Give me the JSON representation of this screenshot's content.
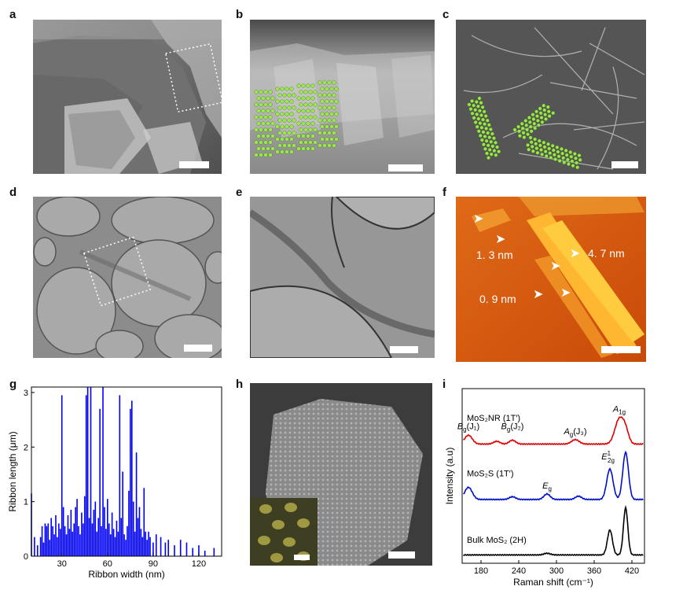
{
  "panel_labels": [
    "a",
    "b",
    "c",
    "d",
    "e",
    "f",
    "g",
    "h",
    "i"
  ],
  "afm": {
    "labels": [
      "1. 3 nm",
      "4. 7 nm",
      "0. 9 nm"
    ]
  },
  "colors": {
    "sem_bg": "#6e6e6e",
    "tem_bg": "#9a9a9a",
    "afm_bg": "#d45a10",
    "afm_ribbon": "#ffc030",
    "atom_green": "#9be84a",
    "histogram": "#0000ff",
    "raman_nr": "#e00000",
    "raman_s": "#0010c8",
    "raman_bulk": "#000000"
  },
  "chart_data": [
    {
      "panel": "g",
      "type": "bar",
      "xlabel": "Ribbon width (nm)",
      "ylabel": "Ribbon length (μm)",
      "xlim": [
        10,
        135
      ],
      "ylim": [
        0,
        3.1
      ],
      "xticks": [
        30,
        60,
        90,
        120
      ],
      "yticks": [
        0,
        1,
        2,
        3
      ],
      "x": [
        10,
        12,
        14,
        16,
        17,
        18,
        19,
        20,
        21,
        22,
        23,
        24,
        25,
        26,
        27,
        28,
        29,
        30,
        31,
        32,
        33,
        34,
        35,
        36,
        37,
        38,
        39,
        40,
        41,
        42,
        43,
        44,
        45,
        46,
        47,
        48,
        49,
        50,
        51,
        52,
        53,
        54,
        55,
        56,
        57,
        58,
        59,
        60,
        61,
        62,
        63,
        64,
        65,
        66,
        67,
        68,
        69,
        70,
        71,
        72,
        73,
        74,
        75,
        76,
        77,
        78,
        79,
        80,
        81,
        82,
        83,
        84,
        85,
        86,
        87,
        88,
        90,
        92,
        95,
        98,
        100,
        104,
        108,
        112,
        116,
        120,
        124,
        130
      ],
      "values": [
        1.15,
        0.35,
        0.2,
        0.35,
        0.55,
        0.25,
        0.6,
        0.55,
        0.6,
        0.3,
        0.7,
        0.55,
        0.4,
        0.75,
        0.35,
        0.6,
        0.5,
        2.95,
        0.9,
        0.55,
        0.4,
        0.75,
        0.5,
        0.85,
        0.45,
        0.6,
        0.9,
        1.05,
        0.55,
        0.4,
        0.8,
        0.6,
        1.1,
        2.95,
        3.1,
        0.7,
        3.1,
        0.6,
        0.85,
        1.0,
        0.45,
        0.7,
        2.7,
        0.55,
        3.1,
        0.9,
        0.5,
        1.05,
        0.6,
        0.4,
        0.8,
        0.5,
        0.35,
        0.65,
        0.45,
        2.95,
        0.7,
        1.55,
        0.4,
        0.3,
        0.55,
        1.2,
        2.7,
        2.85,
        1.0,
        0.45,
        1.9,
        0.7,
        0.9,
        0.5,
        0.35,
        1.25,
        0.45,
        0.3,
        0.45,
        0.35,
        0.25,
        0.4,
        0.35,
        0.25,
        0.3,
        0.2,
        0.3,
        0.25,
        0.15,
        0.2,
        0.1,
        0.15
      ]
    },
    {
      "panel": "i",
      "type": "line",
      "xlabel": "Raman shift (cm⁻¹)",
      "ylabel": "Intensity (a.u)",
      "xlim": [
        150,
        440
      ],
      "xticks": [
        180,
        240,
        300,
        360,
        420
      ],
      "series": [
        {
          "name": "MoS₂NR (1T′)",
          "offset": 2.0,
          "peaks": [
            [
              160,
              0.16,
              6
            ],
            [
              205,
              0.05,
              5
            ],
            [
              230,
              0.07,
              5
            ],
            [
              330,
              0.08,
              6
            ],
            [
              400,
              0.45,
              7
            ],
            [
              410,
              0.2,
              5
            ]
          ]
        },
        {
          "name": "MoS₂S (1T′)",
          "offset": 1.0,
          "peaks": [
            [
              160,
              0.22,
              6
            ],
            [
              230,
              0.05,
              5
            ],
            [
              285,
              0.1,
              5
            ],
            [
              335,
              0.06,
              5
            ],
            [
              385,
              0.55,
              5
            ],
            [
              410,
              0.85,
              4.5
            ]
          ]
        },
        {
          "name": "Bulk MoS₂ (2H)",
          "offset": 0.0,
          "peaks": [
            [
              285,
              0.03,
              5
            ],
            [
              385,
              0.45,
              4
            ],
            [
              410,
              0.85,
              3.5
            ]
          ]
        }
      ],
      "annotations": [
        {
          "text": "B",
          "sub": "g",
          "tail": "(J₁)",
          "x": 160,
          "y": 2.27
        },
        {
          "text": "B",
          "sub": "g",
          "tail": "(J₂)",
          "x": 230,
          "y": 2.27
        },
        {
          "text": "A",
          "sub": "g",
          "tail": "(J₃)",
          "x": 330,
          "y": 2.18
        },
        {
          "text": "A",
          "sub": "1g",
          "tail": "",
          "x": 400,
          "y": 2.58
        },
        {
          "text": "E",
          "sub": "2g",
          "sup": "1",
          "tail": "",
          "x": 382,
          "y": 1.72
        },
        {
          "text": "E",
          "sub": "g",
          "tail": "",
          "x": 285,
          "y": 1.2
        }
      ]
    }
  ]
}
